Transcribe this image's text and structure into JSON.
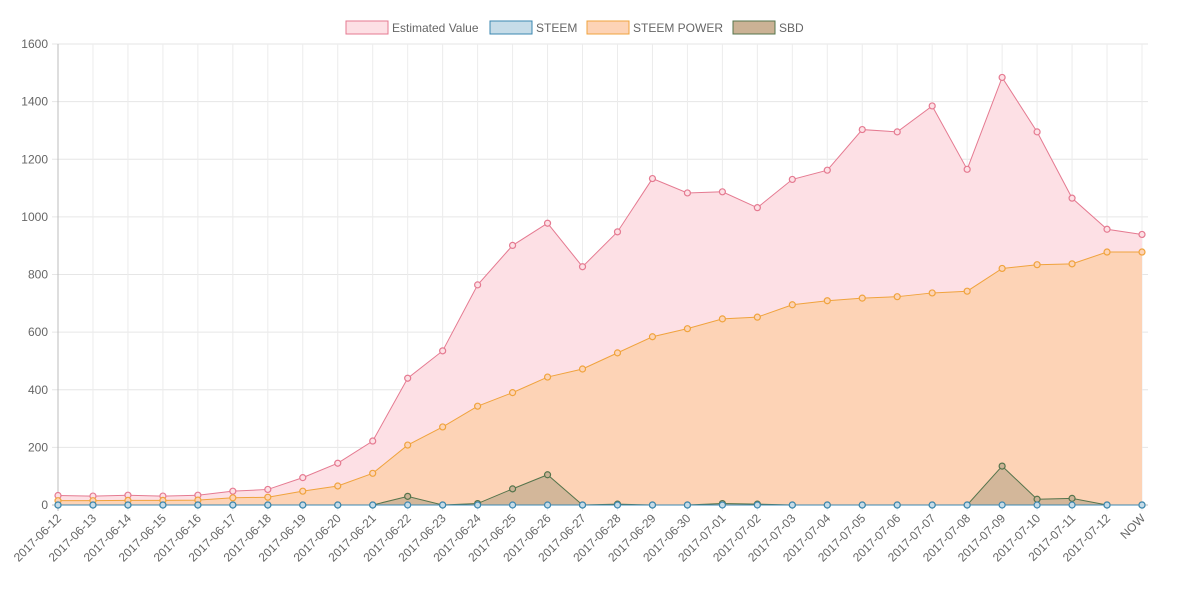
{
  "chart_data": {
    "type": "area",
    "title": "",
    "xlabel": "",
    "ylabel": "",
    "ylim": [
      0,
      1600
    ],
    "yticks": [
      0,
      200,
      400,
      600,
      800,
      1000,
      1200,
      1400,
      1600
    ],
    "grid": true,
    "legend_position": "top",
    "categories": [
      "2017-06-12",
      "2017-06-13",
      "2017-06-14",
      "2017-06-15",
      "2017-06-16",
      "2017-06-17",
      "2017-06-18",
      "2017-06-19",
      "2017-06-20",
      "2017-06-21",
      "2017-06-22",
      "2017-06-23",
      "2017-06-24",
      "2017-06-25",
      "2017-06-26",
      "2017-06-27",
      "2017-06-28",
      "2017-06-29",
      "2017-06-30",
      "2017-07-01",
      "2017-07-02",
      "2017-07-03",
      "2017-07-04",
      "2017-07-05",
      "2017-07-06",
      "2017-07-07",
      "2017-07-08",
      "2017-07-09",
      "2017-07-10",
      "2017-07-11",
      "2017-07-12",
      "NOW"
    ],
    "series": [
      {
        "name": "Estimated Value",
        "color": "#e57a91",
        "fill": "#fde0e5",
        "values": [
          33,
          31,
          34,
          31,
          34,
          48,
          54,
          95,
          145,
          222,
          440,
          535,
          764,
          901,
          978,
          827,
          948,
          1133,
          1083,
          1087,
          1032,
          1130,
          1162,
          1303,
          1295,
          1385,
          1165,
          1484,
          1295,
          1065,
          957,
          939
        ]
      },
      {
        "name": "STEEM",
        "color": "#3b87b0",
        "fill": "#c6dce8",
        "values": [
          0,
          0,
          0,
          0,
          0,
          0,
          0,
          0,
          0,
          0,
          0,
          0,
          0,
          0,
          0,
          0,
          0,
          0,
          0,
          0,
          0,
          0,
          0,
          0,
          0,
          0,
          0,
          0,
          0,
          0,
          0,
          0
        ]
      },
      {
        "name": "STEEM POWER",
        "color": "#f0a33d",
        "fill": "#fdd3b6",
        "values": [
          15,
          15,
          16,
          16,
          17,
          25,
          27,
          48,
          66,
          110,
          208,
          271,
          343,
          390,
          444,
          472,
          528,
          584,
          612,
          646,
          652,
          695,
          709,
          718,
          723,
          736,
          742,
          821,
          834,
          837,
          878,
          878
        ]
      },
      {
        "name": "SBD",
        "color": "#55744c",
        "fill": "#cbb295",
        "values": [
          0,
          0,
          0,
          0,
          0,
          0,
          0,
          0,
          0,
          0,
          30,
          0,
          5,
          56,
          105,
          0,
          3,
          0,
          0,
          5,
          3,
          0,
          0,
          0,
          0,
          0,
          0,
          135,
          20,
          23,
          0,
          0
        ]
      }
    ]
  }
}
